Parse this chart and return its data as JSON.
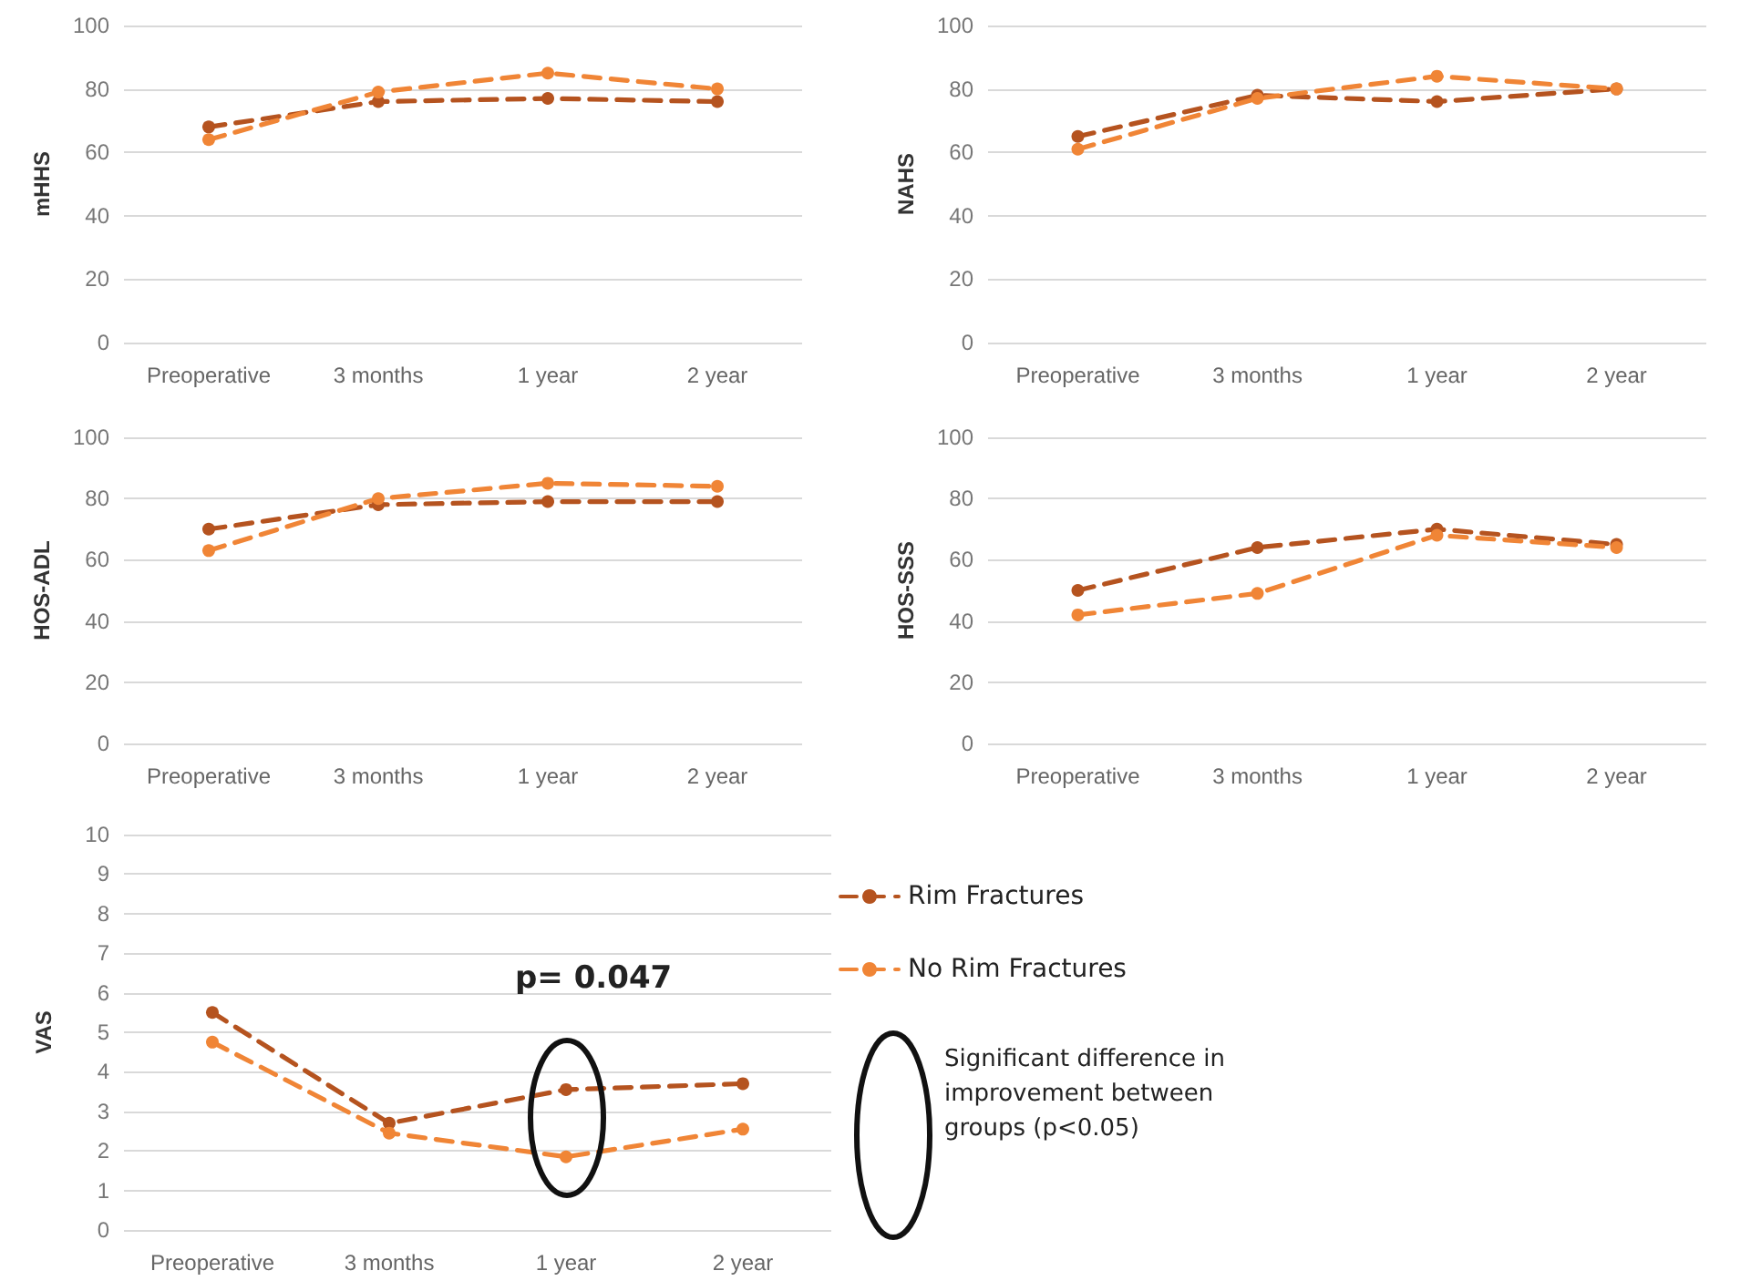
{
  "chart_data": [
    {
      "type": "line",
      "ylabel": "mHHS",
      "categories": [
        "Preoperative",
        "3 months",
        "1 year",
        "2 year"
      ],
      "ylim": [
        0,
        100
      ],
      "yticks": [
        0,
        20,
        40,
        60,
        80,
        100
      ],
      "grid": "y",
      "marker": "circle",
      "line_style": "dashed",
      "legend": false,
      "series": [
        {
          "color": "#b5531f",
          "values": [
            68,
            76,
            77,
            76
          ]
        },
        {
          "color": "#f08536",
          "values": [
            64,
            79,
            85,
            80
          ]
        }
      ]
    },
    {
      "type": "line",
      "ylabel": "NAHS",
      "categories": [
        "Preoperative",
        "3 months",
        "1 year",
        "2 year"
      ],
      "ylim": [
        0,
        100
      ],
      "yticks": [
        0,
        20,
        40,
        60,
        80,
        100
      ],
      "grid": "y",
      "marker": "circle",
      "line_style": "dashed",
      "legend": false,
      "series": [
        {
          "color": "#b5531f",
          "values": [
            65,
            78,
            76,
            80
          ]
        },
        {
          "color": "#f08536",
          "values": [
            61,
            77,
            84,
            80
          ]
        }
      ]
    },
    {
      "type": "line",
      "ylabel": "HOS-ADL",
      "categories": [
        "Preoperative",
        "3 months",
        "1 year",
        "2 year"
      ],
      "ylim": [
        0,
        100
      ],
      "yticks": [
        0,
        20,
        40,
        60,
        80,
        100
      ],
      "grid": "y",
      "marker": "circle",
      "line_style": "dashed",
      "legend": false,
      "series": [
        {
          "color": "#b5531f",
          "values": [
            70,
            78,
            79,
            79
          ]
        },
        {
          "color": "#f08536",
          "values": [
            63,
            80,
            85,
            84
          ]
        }
      ]
    },
    {
      "type": "line",
      "ylabel": "HOS-SSS",
      "categories": [
        "Preoperative",
        "3 months",
        "1 year",
        "2 year"
      ],
      "ylim": [
        0,
        100
      ],
      "yticks": [
        0,
        20,
        40,
        60,
        80,
        100
      ],
      "grid": "y",
      "marker": "circle",
      "line_style": "dashed",
      "legend": false,
      "series": [
        {
          "color": "#b5531f",
          "values": [
            50,
            64,
            70,
            65
          ]
        },
        {
          "color": "#f08536",
          "values": [
            42,
            49,
            68,
            64
          ]
        }
      ]
    },
    {
      "type": "line",
      "ylabel": "VAS",
      "categories": [
        "Preoperative",
        "3 months",
        "1 year",
        "2 year"
      ],
      "ylim": [
        0,
        10
      ],
      "yticks": [
        0,
        1,
        2,
        3,
        4,
        5,
        6,
        7,
        8,
        9,
        10
      ],
      "grid": "y",
      "marker": "circle",
      "line_style": "dashed",
      "legend": "right",
      "annotations": [
        "p= 0.047",
        "Significant difference in improvement between groups (p<0.05)"
      ],
      "series": [
        {
          "name": "Rim Fractures",
          "color": "#b5531f",
          "values": [
            5.5,
            2.7,
            3.55,
            3.7
          ]
        },
        {
          "name": "No Rim Fractures",
          "color": "#f08536",
          "values": [
            4.75,
            2.45,
            1.85,
            2.55
          ]
        }
      ]
    }
  ]
}
